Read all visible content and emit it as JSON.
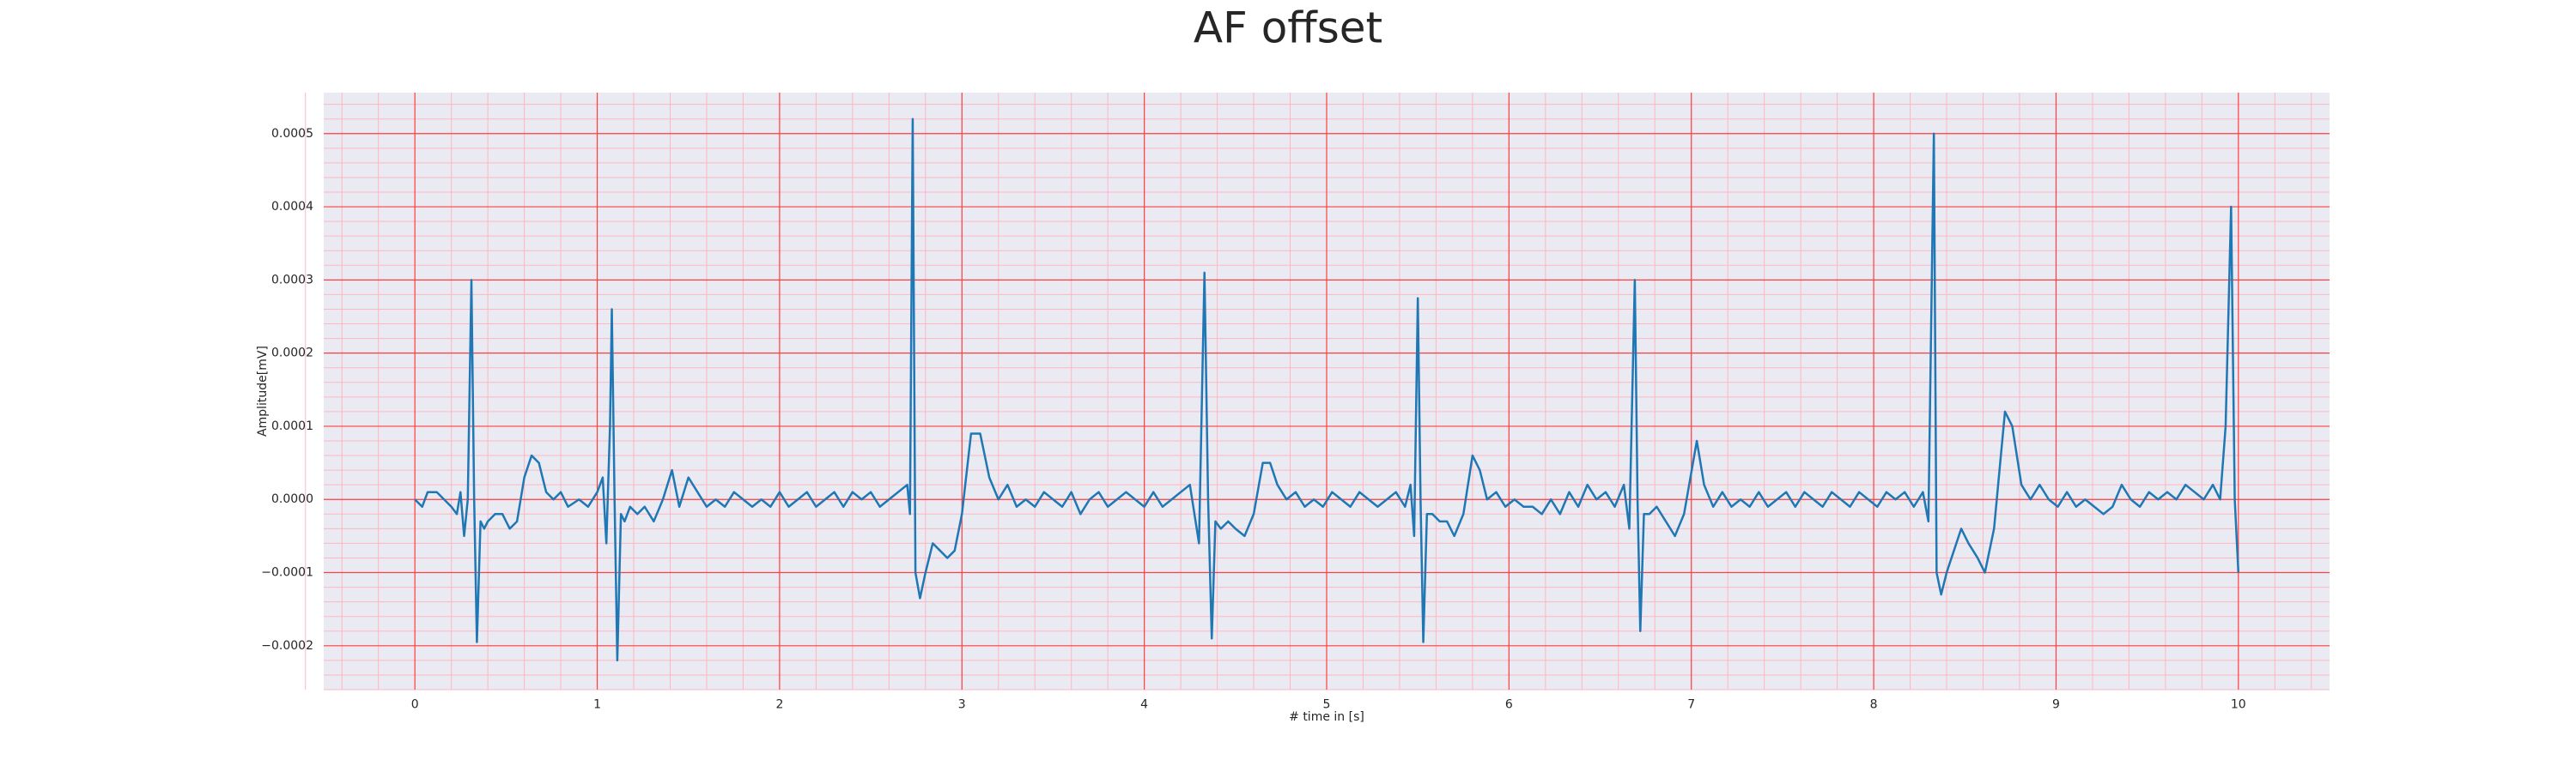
{
  "chart_data": {
    "type": "line",
    "title": "AF offset",
    "xlabel": "# time in [s]",
    "ylabel": "Amplitude[mV]",
    "xlim": [
      -0.5,
      10.5
    ],
    "ylim": [
      -0.00026,
      0.000556
    ],
    "xticks": [
      0,
      1,
      2,
      3,
      4,
      5,
      6,
      7,
      8,
      9,
      10
    ],
    "yticks": [
      {
        "value": -0.0002,
        "label": "−0.0002"
      },
      {
        "value": -0.0001,
        "label": "−0.0001"
      },
      {
        "value": 0,
        "label": "0.0000"
      },
      {
        "value": 0.0001,
        "label": "0.0001"
      },
      {
        "value": 0.0002,
        "label": "0.0002"
      },
      {
        "value": 0.0003,
        "label": "0.0003"
      },
      {
        "value": 0.0004,
        "label": "0.0004"
      },
      {
        "value": 0.0005,
        "label": "0.0005"
      }
    ],
    "grid": true,
    "minor_grid": true,
    "grid_color": "#ff4040",
    "minor_grid_color": "#ffb6c1",
    "background": "#eaeaf2",
    "series": [
      {
        "color": "#1f77b4",
        "x": [
          0.0,
          0.04,
          0.07,
          0.12,
          0.16,
          0.2,
          0.23,
          0.25,
          0.27,
          0.29,
          0.31,
          0.325,
          0.34,
          0.36,
          0.38,
          0.4,
          0.44,
          0.48,
          0.52,
          0.56,
          0.6,
          0.64,
          0.68,
          0.72,
          0.76,
          0.8,
          0.84,
          0.9,
          0.95,
          1.0,
          1.03,
          1.05,
          1.07,
          1.08,
          1.095,
          1.11,
          1.13,
          1.15,
          1.18,
          1.22,
          1.26,
          1.31,
          1.36,
          1.41,
          1.45,
          1.5,
          1.55,
          1.6,
          1.65,
          1.7,
          1.75,
          1.8,
          1.85,
          1.9,
          1.95,
          2.0,
          2.05,
          2.1,
          2.15,
          2.2,
          2.25,
          2.3,
          2.35,
          2.4,
          2.45,
          2.5,
          2.55,
          2.6,
          2.65,
          2.7,
          2.715,
          2.73,
          2.745,
          2.77,
          2.8,
          2.84,
          2.88,
          2.92,
          2.96,
          3.0,
          3.05,
          3.1,
          3.15,
          3.2,
          3.25,
          3.3,
          3.35,
          3.4,
          3.45,
          3.5,
          3.55,
          3.6,
          3.65,
          3.7,
          3.75,
          3.8,
          3.85,
          3.9,
          3.95,
          4.0,
          4.05,
          4.1,
          4.15,
          4.2,
          4.25,
          4.3,
          4.33,
          4.35,
          4.37,
          4.39,
          4.42,
          4.46,
          4.5,
          4.55,
          4.6,
          4.65,
          4.69,
          4.73,
          4.78,
          4.83,
          4.88,
          4.93,
          4.98,
          5.03,
          5.08,
          5.13,
          5.18,
          5.23,
          5.28,
          5.33,
          5.38,
          5.43,
          5.46,
          5.48,
          5.5,
          5.515,
          5.53,
          5.55,
          5.58,
          5.62,
          5.66,
          5.7,
          5.75,
          5.8,
          5.84,
          5.88,
          5.93,
          5.98,
          6.03,
          6.08,
          6.13,
          6.18,
          6.23,
          6.28,
          6.33,
          6.38,
          6.43,
          6.48,
          6.53,
          6.58,
          6.63,
          6.66,
          6.69,
          6.705,
          6.72,
          6.74,
          6.77,
          6.81,
          6.86,
          6.91,
          6.96,
          7.03,
          7.07,
          7.12,
          7.17,
          7.22,
          7.27,
          7.32,
          7.37,
          7.42,
          7.47,
          7.52,
          7.57,
          7.62,
          7.67,
          7.72,
          7.77,
          7.82,
          7.87,
          7.92,
          7.97,
          8.02,
          8.07,
          8.12,
          8.17,
          8.22,
          8.27,
          8.3,
          8.33,
          8.345,
          8.37,
          8.4,
          8.44,
          8.48,
          8.52,
          8.57,
          8.61,
          8.66,
          8.72,
          8.76,
          8.81,
          8.86,
          8.91,
          8.96,
          9.01,
          9.06,
          9.11,
          9.16,
          9.21,
          9.26,
          9.31,
          9.36,
          9.41,
          9.46,
          9.51,
          9.56,
          9.61,
          9.66,
          9.71,
          9.76,
          9.81,
          9.86,
          9.9,
          9.93,
          9.96,
          9.98,
          10.0
        ],
        "values": [
          0.0,
          -1e-05,
          1e-05,
          1e-05,
          0.0,
          -1e-05,
          -2e-05,
          1e-05,
          -5e-05,
          0.0,
          0.0003,
          0.0,
          -0.000195,
          -3e-05,
          -4e-05,
          -3e-05,
          -2e-05,
          -2e-05,
          -4e-05,
          -3e-05,
          3e-05,
          6e-05,
          5e-05,
          1e-05,
          0.0,
          1e-05,
          -1e-05,
          0.0,
          -1e-05,
          1e-05,
          3e-05,
          -6e-05,
          0.0001,
          0.00026,
          0.0,
          -0.00022,
          -2e-05,
          -3e-05,
          -1e-05,
          -2e-05,
          -1e-05,
          -3e-05,
          0.0,
          4e-05,
          -1e-05,
          3e-05,
          1e-05,
          -1e-05,
          0.0,
          -1e-05,
          1e-05,
          0.0,
          -1e-05,
          0.0,
          -1e-05,
          1e-05,
          -1e-05,
          0.0,
          1e-05,
          -1e-05,
          0.0,
          1e-05,
          -1e-05,
          1e-05,
          0.0,
          1e-05,
          -1e-05,
          0.0,
          1e-05,
          2e-05,
          -2e-05,
          0.00052,
          -0.0001,
          -0.000135,
          -0.0001,
          -6e-05,
          -7e-05,
          -8e-05,
          -7e-05,
          -2e-05,
          9e-05,
          9e-05,
          3e-05,
          0.0,
          2e-05,
          -1e-05,
          0.0,
          -1e-05,
          1e-05,
          0.0,
          -1e-05,
          1e-05,
          -2e-05,
          0.0,
          1e-05,
          -1e-05,
          0.0,
          1e-05,
          0.0,
          -1e-05,
          1e-05,
          -1e-05,
          0.0,
          1e-05,
          2e-05,
          -6e-05,
          0.00031,
          0.0,
          -0.00019,
          -3e-05,
          -4e-05,
          -3e-05,
          -4e-05,
          -5e-05,
          -2e-05,
          5e-05,
          5e-05,
          2e-05,
          0.0,
          1e-05,
          -1e-05,
          0.0,
          -1e-05,
          1e-05,
          0.0,
          -1e-05,
          1e-05,
          0.0,
          -1e-05,
          0.0,
          1e-05,
          -1e-05,
          2e-05,
          -5e-05,
          0.000275,
          0.0,
          -0.000195,
          -2e-05,
          -2e-05,
          -3e-05,
          -3e-05,
          -5e-05,
          -2e-05,
          6e-05,
          4e-05,
          0.0,
          1e-05,
          -1e-05,
          0.0,
          -1e-05,
          -1e-05,
          -2e-05,
          0.0,
          -2e-05,
          1e-05,
          -1e-05,
          2e-05,
          0.0,
          1e-05,
          -1e-05,
          2e-05,
          -4e-05,
          0.0003,
          0.0,
          -0.00018,
          -2e-05,
          -2e-05,
          -1e-05,
          -3e-05,
          -5e-05,
          -2e-05,
          8e-05,
          2e-05,
          -1e-05,
          1e-05,
          -1e-05,
          0.0,
          -1e-05,
          1e-05,
          -1e-05,
          0.0,
          1e-05,
          -1e-05,
          1e-05,
          0.0,
          -1e-05,
          1e-05,
          0.0,
          -1e-05,
          1e-05,
          0.0,
          -1e-05,
          1e-05,
          0.0,
          1e-05,
          -1e-05,
          1e-05,
          -3e-05,
          0.0005,
          -0.0001,
          -0.00013,
          -0.0001,
          -7e-05,
          -4e-05,
          -6e-05,
          -8e-05,
          -0.0001,
          -4e-05,
          0.00012,
          0.0001,
          2e-05,
          0.0,
          2e-05,
          0.0,
          -1e-05,
          1e-05,
          -1e-05,
          0.0,
          -1e-05,
          -2e-05,
          -1e-05,
          2e-05,
          0.0,
          -1e-05,
          1e-05,
          0.0,
          1e-05,
          0.0,
          2e-05,
          1e-05,
          0.0,
          2e-05,
          0.0,
          0.0001,
          0.0004,
          0.0,
          -0.0001
        ]
      }
    ]
  }
}
